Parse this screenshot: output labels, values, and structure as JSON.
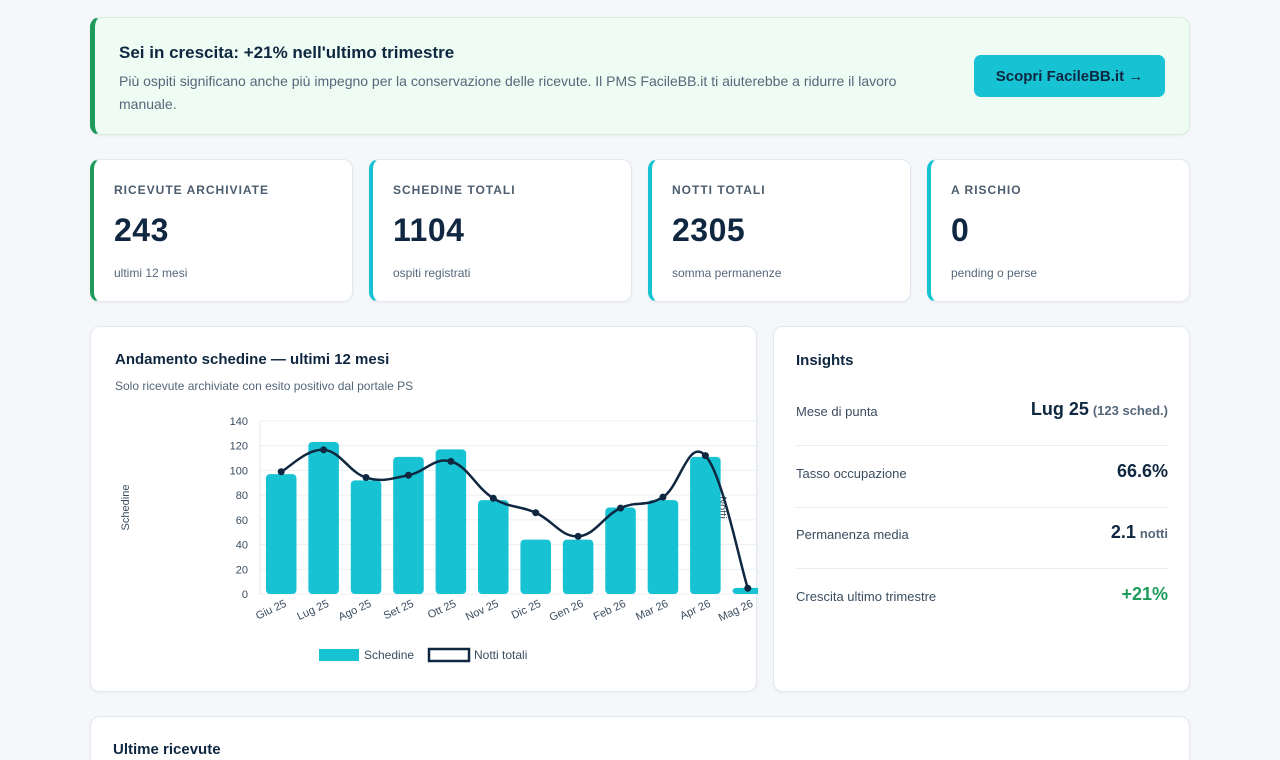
{
  "banner": {
    "title": "Sei in crescita: +21% nell'ultimo trimestre",
    "text": "Più ospiti significano anche più impegno per la conservazione delle ricevute. Il PMS FacileBB.it ti aiuterebbe a ridurre il lavoro manuale.",
    "cta_label": "Scopri FacileBB.it →"
  },
  "kpis": [
    {
      "label": "RICEVUTE ARCHIVIATE",
      "value": "243",
      "sub": "ultimi 12 mesi"
    },
    {
      "label": "SCHEDINE TOTALI",
      "value": "1104",
      "sub": "ospiti registrati"
    },
    {
      "label": "NOTTI TOTALI",
      "value": "2305",
      "sub": "somma permanenze"
    },
    {
      "label": "A RISCHIO",
      "value": "0",
      "sub": "pending o perse"
    }
  ],
  "chart_card": {
    "title": "Andamento schedine — ultimi 12 mesi",
    "subtitle": "Solo ricevute archiviate con esito positivo dal portale PS"
  },
  "insights": {
    "title": "Insights",
    "rows": [
      {
        "label": "Mese di punta",
        "value": "Lug 25",
        "unit": "(123 sched.)"
      },
      {
        "label": "Tasso occupazione",
        "value": "66.6%",
        "unit": ""
      },
      {
        "label": "Permanenza media",
        "value": "2.1",
        "unit": "notti"
      },
      {
        "label": "Crescita ultimo trimestre",
        "value": "+21%",
        "unit": ""
      }
    ]
  },
  "recent": {
    "title": "Ultime ricevute"
  },
  "colors": {
    "accent": "#17c2d3",
    "navy": "#0f2740",
    "green": "#1e9a5a"
  },
  "chart_data": {
    "type": "bar",
    "categories": [
      "Giu 25",
      "Lug 25",
      "Ago 25",
      "Set 25",
      "Ott 25",
      "Nov 25",
      "Dic 25",
      "Gen 26",
      "Feb 26",
      "Mar 26",
      "Apr 26",
      "Mag 26"
    ],
    "series": [
      {
        "name": "Schedine",
        "type": "bar",
        "axis": "left",
        "color": "#17c2d3",
        "values": [
          97,
          123,
          92,
          111,
          117,
          76,
          44,
          44,
          70,
          76,
          111,
          5
        ]
      },
      {
        "name": "Notti totali",
        "type": "line",
        "axis": "right",
        "color": "#0f2740",
        "values": [
          212,
          250,
          202,
          206,
          230,
          166,
          141,
          100,
          149,
          168,
          240,
          10
        ]
      }
    ],
    "ylabel": "Schedine",
    "y2label": "Notti",
    "ylim": [
      0,
      140
    ],
    "y2lim": [
      0,
      300
    ],
    "yticks": [
      0,
      20,
      40,
      60,
      80,
      100,
      120,
      140
    ],
    "y2ticks": [
      0,
      50,
      100,
      150,
      200,
      250,
      300
    ],
    "grid": true,
    "legend": "bottom"
  }
}
